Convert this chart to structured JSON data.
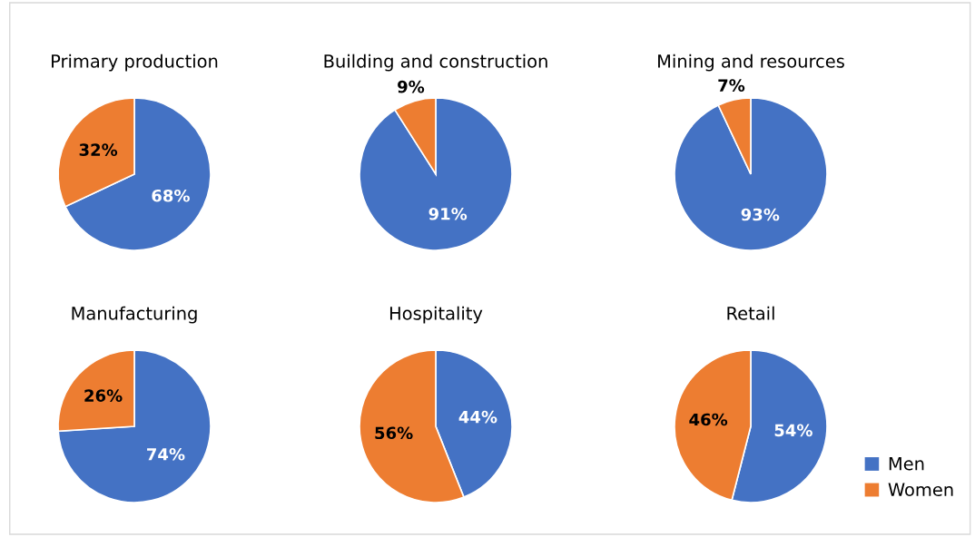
{
  "chart_data": [
    {
      "type": "pie",
      "title": "Primary production",
      "categories": [
        "Men",
        "Women"
      ],
      "values": [
        68,
        32
      ],
      "value_labels": [
        "68%",
        "32%"
      ],
      "colors": [
        "#4472c4",
        "#ed7d31"
      ],
      "legend": "bottom right"
    },
    {
      "type": "pie",
      "title": "Building and construction",
      "categories": [
        null,
        null
      ],
      "values": [
        91,
        9
      ],
      "value_labels": [
        "91%",
        "9%"
      ],
      "colors": [
        "#4472c4",
        "#ed7d31"
      ]
    },
    {
      "type": "pie",
      "title": "Mining and resources",
      "categories": [
        null,
        null
      ],
      "values": [
        93,
        7
      ],
      "value_labels": [
        "93%",
        "7%"
      ],
      "colors": [
        "#4472c4",
        "#ed7d31"
      ]
    },
    {
      "type": "pie",
      "title": "Manufacturing",
      "categories": [
        null,
        null
      ],
      "values": [
        74,
        26
      ],
      "value_labels": [
        "74%",
        "26%"
      ],
      "colors": [
        "#4472c4",
        "#ed7d31"
      ]
    },
    {
      "type": "pie",
      "title": "Hospitality",
      "categories": [
        null,
        null
      ],
      "values": [
        44,
        56
      ],
      "value_labels": [
        "44%",
        "56%"
      ],
      "colors": [
        "#4472c4",
        "#ed7d31"
      ]
    },
    {
      "type": "pie",
      "title": "Retail",
      "categories": [
        null,
        null
      ],
      "values": [
        54,
        46
      ],
      "value_labels": [
        "54%",
        "46%"
      ],
      "colors": [
        "#4472c4",
        "#ed7d31"
      ]
    }
  ]
}
